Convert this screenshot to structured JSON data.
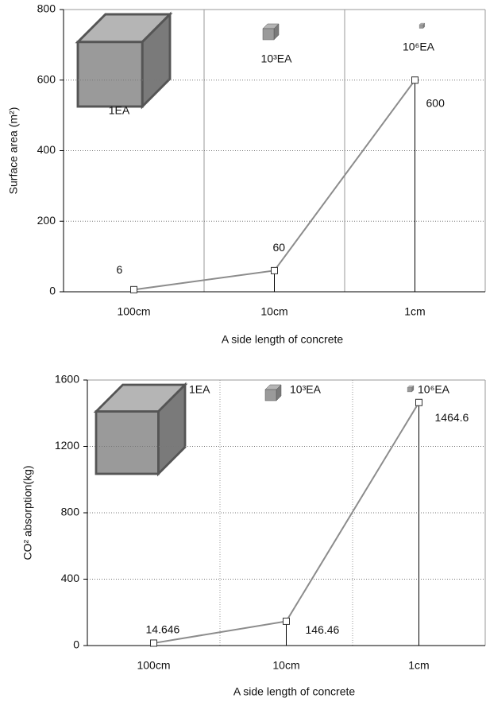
{
  "chart_data": [
    {
      "type": "line",
      "title_y": "Surface area (m²)",
      "xlabel": "A side length of concrete",
      "categories": [
        "100cm",
        "10cm",
        "1cm"
      ],
      "values": [
        6,
        60,
        600
      ],
      "color": "#8c8c8c",
      "ylim": [
        0,
        800
      ],
      "yticks": [
        0,
        200,
        400,
        600,
        800
      ],
      "grid": true,
      "annotations": [
        "1EA",
        "10³EA",
        "10⁶EA"
      ]
    },
    {
      "type": "line",
      "title_y": "CO² absorption(kg)",
      "xlabel": "A side length of concrete",
      "categories": [
        "100cm",
        "10cm",
        "1cm"
      ],
      "values": [
        14.646,
        146.46,
        1464.6
      ],
      "color": "#8c8c8c",
      "ylim": [
        0,
        1600
      ],
      "yticks": [
        0,
        400,
        800,
        1200,
        1600
      ],
      "grid": true,
      "annotations": [
        "1EA",
        "10³EA",
        "10⁶EA"
      ]
    }
  ]
}
